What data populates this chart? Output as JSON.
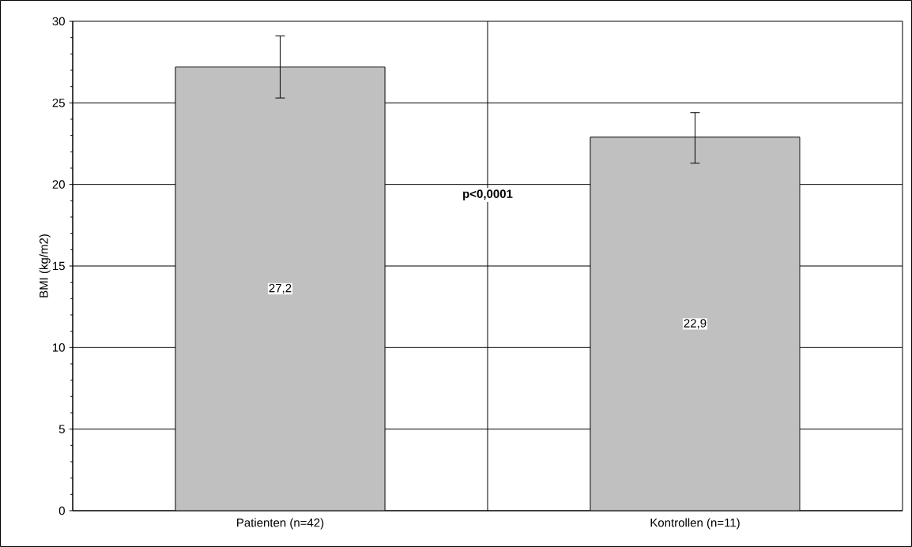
{
  "chart_data": {
    "type": "bar",
    "ylabel": "BMI (kg/m2)",
    "categories": [
      "Patienten (n=42)",
      "Kontrollen (n=11)"
    ],
    "values": [
      27.2,
      22.9
    ],
    "color": "#c0c0c0",
    "errors": [
      [
        25.3,
        29.1
      ],
      [
        21.3,
        24.4
      ]
    ],
    "value_labels": [
      "27,2",
      "22,9"
    ],
    "ylim": [
      0,
      30
    ],
    "yticks": [
      0,
      5,
      10,
      15,
      20,
      25,
      30
    ],
    "grid": true,
    "annotations": [
      "p<0,0001"
    ]
  }
}
